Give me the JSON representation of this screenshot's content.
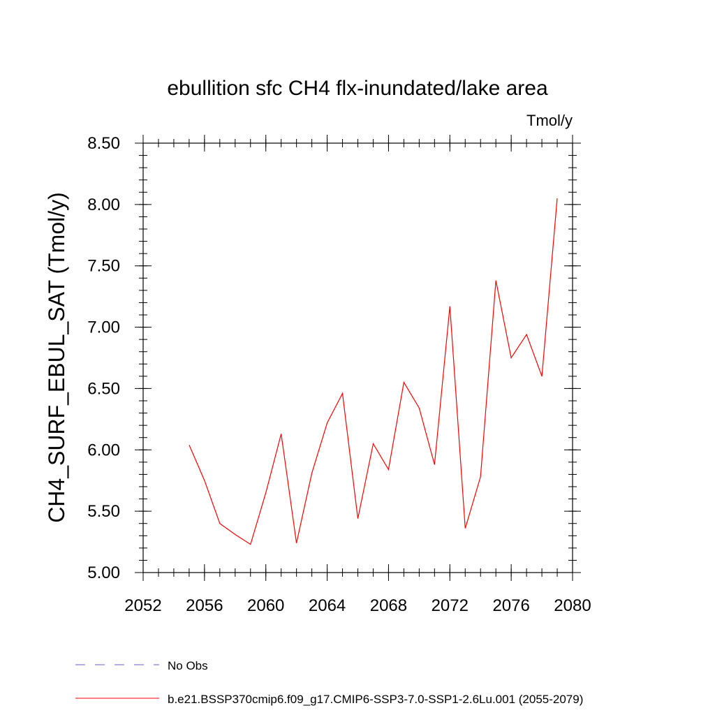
{
  "chart_data": {
    "type": "line",
    "title": "ebullition sfc CH4 flx-inundated/lake area",
    "units_label": "Tmol/y",
    "xlabel": "",
    "ylabel": "CH4_SURF_EBUL_SAT  (Tmol/y)",
    "xlim": [
      2052,
      2080
    ],
    "ylim": [
      5.0,
      8.5
    ],
    "x_ticks": [
      2052,
      2056,
      2060,
      2064,
      2068,
      2072,
      2076,
      2080
    ],
    "x_tick_labels": [
      "2052",
      "2056",
      "2060",
      "2064",
      "2068",
      "2072",
      "2076",
      "2080"
    ],
    "x_minor_step": 1,
    "y_ticks": [
      5.0,
      5.5,
      6.0,
      6.5,
      7.0,
      7.5,
      8.0,
      8.5
    ],
    "y_tick_labels": [
      "5.00",
      "5.50",
      "6.00",
      "6.50",
      "7.00",
      "7.50",
      "8.00",
      "8.50"
    ],
    "y_minor_step": 0.1,
    "grid": false,
    "legend_placement": "bottom",
    "series": [
      {
        "name": "b.e21.BSSP370cmip6.f09_g17.CMIP6-SSP3-7.0-SSP1-2.6Lu.001 (2055-2079)",
        "color": "#ff0000",
        "dash": "solid",
        "x": [
          2055,
          2056,
          2057,
          2058,
          2059,
          2060,
          2061,
          2062,
          2063,
          2064,
          2065,
          2066,
          2067,
          2068,
          2069,
          2070,
          2071,
          2072,
          2073,
          2074,
          2075,
          2076,
          2077,
          2078,
          2079
        ],
        "y": [
          6.04,
          5.75,
          5.4,
          5.31,
          5.23,
          5.65,
          6.13,
          5.24,
          5.81,
          6.22,
          6.46,
          5.44,
          6.05,
          5.84,
          6.55,
          6.34,
          5.88,
          7.17,
          5.36,
          5.78,
          7.38,
          6.75,
          6.94,
          6.6,
          8.05
        ]
      }
    ],
    "legend": [
      {
        "label": "No Obs",
        "color": "#6a5acd",
        "dash": "dashed"
      },
      {
        "label": "b.e21.BSSP370cmip6.f09_g17.CMIP6-SSP3-7.0-SSP1-2.6Lu.001 (2055-2079)",
        "color": "#ff0000",
        "dash": "solid"
      }
    ]
  }
}
